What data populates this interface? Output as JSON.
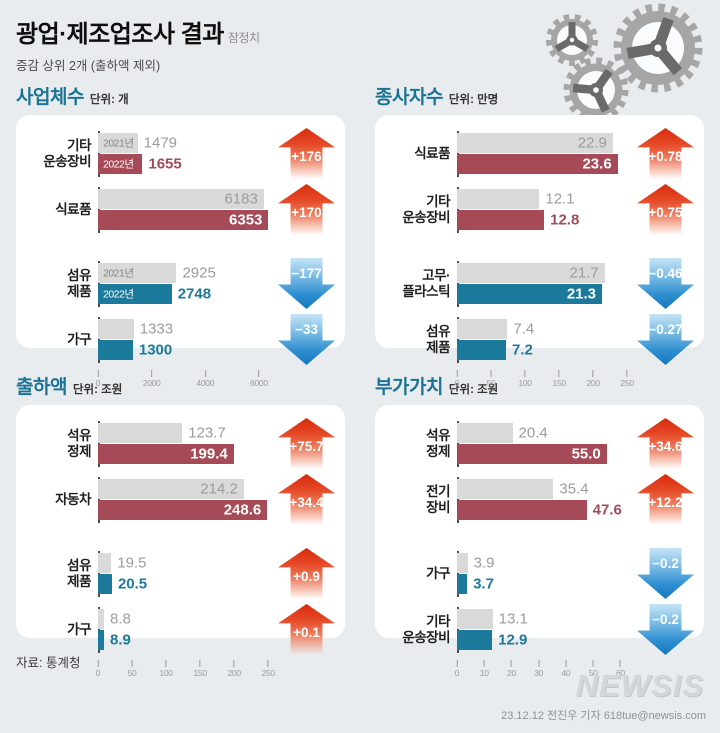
{
  "header": {
    "title": "광업·제조업조사 결과",
    "badge": "잠정치",
    "subtitle": "증감 상위 2개 (출하액 제외)"
  },
  "year_labels": {
    "y2021": "2021년",
    "y2022": "2022년"
  },
  "colors": {
    "red_bar": "#a64a57",
    "teal_bar": "#1b7a9c",
    "gray_bar": "#d9d9d9",
    "up_arrow_red": "#d92a0d",
    "down_arrow_blue": "#1478be",
    "section_title_teal": "#1b7495"
  },
  "chart_data": [
    {
      "type": "bar",
      "title": "사업체수",
      "unit_label": "단위: 개",
      "legend_years": [
        "2021년",
        "2022년"
      ],
      "axis_max": 6600,
      "display_multiplier": 1,
      "ticks": [
        "0",
        "2000",
        "4000",
        "6000"
      ],
      "groups": [
        {
          "category": [
            "기타",
            "운송장비"
          ],
          "v2021": "1479",
          "v2022": "1655",
          "change": "+176",
          "direction": "up",
          "bar_color": "red",
          "show_year_labels": true,
          "gap_before": false
        },
        {
          "category": [
            "식료품"
          ],
          "v2021": "6183",
          "v2022": "6353",
          "change": "+170",
          "direction": "up",
          "bar_color": "red",
          "show_year_labels": false,
          "gap_before": false
        },
        {
          "category": [
            "섬유",
            "제품"
          ],
          "v2021": "2925",
          "v2022": "2748",
          "change": "−177",
          "direction": "down",
          "bar_color": "teal",
          "show_year_labels": true,
          "gap_before": true
        },
        {
          "category": [
            "가구"
          ],
          "v2021": "1333",
          "v2022": "1300",
          "change": "−33",
          "direction": "down",
          "bar_color": "teal",
          "show_year_labels": false,
          "gap_before": false
        }
      ]
    },
    {
      "type": "bar",
      "title": "종사자수",
      "unit_label": "단위: 만명",
      "legend_years": [
        "2021년",
        "2022년"
      ],
      "axis_max": 260,
      "display_multiplier": 10,
      "ticks": [
        "0",
        "50",
        "100",
        "150",
        "200",
        "250"
      ],
      "groups": [
        {
          "category": [
            "식료품"
          ],
          "v2021": "22.9",
          "v2022": "23.6",
          "change": "+0.78",
          "direction": "up",
          "bar_color": "red",
          "show_year_labels": false,
          "gap_before": false
        },
        {
          "category": [
            "기타",
            "운송장비"
          ],
          "v2021": "12.1",
          "v2022": "12.8",
          "change": "+0.75",
          "direction": "up",
          "bar_color": "red",
          "show_year_labels": false,
          "gap_before": false
        },
        {
          "category": [
            "고무·",
            "플라스틱"
          ],
          "v2021": "21.7",
          "v2022": "21.3",
          "change": "−0.46",
          "direction": "down",
          "bar_color": "teal",
          "show_year_labels": false,
          "gap_before": true
        },
        {
          "category": [
            "섬유",
            "제품"
          ],
          "v2021": "7.4",
          "v2022": "7.2",
          "change": "−0.27",
          "direction": "down",
          "bar_color": "teal",
          "show_year_labels": false,
          "gap_before": false
        }
      ]
    },
    {
      "type": "bar",
      "title": "출하액",
      "unit_label": "단위: 조원",
      "legend_years": [
        "2021년",
        "2022년"
      ],
      "axis_max": 260,
      "display_multiplier": 1,
      "ticks": [
        "0",
        "50",
        "100",
        "150",
        "200",
        "250"
      ],
      "groups": [
        {
          "category": [
            "석유",
            "정제"
          ],
          "v2021": "123.7",
          "v2022": "199.4",
          "change": "+75.7",
          "direction": "up",
          "bar_color": "red",
          "show_year_labels": false,
          "gap_before": false
        },
        {
          "category": [
            "자동차"
          ],
          "v2021": "214.2",
          "v2022": "248.6",
          "change": "+34.4",
          "direction": "up",
          "bar_color": "red",
          "show_year_labels": false,
          "gap_before": false
        },
        {
          "category": [
            "섬유",
            "제품"
          ],
          "v2021": "19.5",
          "v2022": "20.5",
          "change": "+0.9",
          "direction": "up",
          "bar_color": "teal",
          "show_year_labels": false,
          "gap_before": true
        },
        {
          "category": [
            "가구"
          ],
          "v2021": "8.8",
          "v2022": "8.9",
          "change": "+0.1",
          "direction": "up",
          "bar_color": "teal",
          "show_year_labels": false,
          "gap_before": false
        }
      ]
    },
    {
      "type": "bar",
      "title": "부가가치",
      "unit_label": "단위: 조원",
      "legend_years": [
        "2021년",
        "2022년"
      ],
      "axis_max": 65,
      "display_multiplier": 1,
      "ticks": [
        "0",
        "10",
        "20",
        "30",
        "40",
        "50",
        "60"
      ],
      "groups": [
        {
          "category": [
            "석유",
            "정제"
          ],
          "v2021": "20.4",
          "v2022": "55.0",
          "change": "+34.6",
          "direction": "up",
          "bar_color": "red",
          "show_year_labels": false,
          "gap_before": false
        },
        {
          "category": [
            "전기",
            "장비"
          ],
          "v2021": "35.4",
          "v2022": "47.6",
          "change": "+12.2",
          "direction": "up",
          "bar_color": "red",
          "show_year_labels": false,
          "gap_before": false
        },
        {
          "category": [
            "가구"
          ],
          "v2021": "3.9",
          "v2022": "3.7",
          "change": "−0.2",
          "direction": "down",
          "bar_color": "teal",
          "show_year_labels": false,
          "gap_before": true
        },
        {
          "category": [
            "기타",
            "운송장비"
          ],
          "v2021": "13.1",
          "v2022": "12.9",
          "change": "−0.2",
          "direction": "down",
          "bar_color": "teal",
          "show_year_labels": false,
          "gap_before": false
        }
      ]
    }
  ],
  "footer": {
    "source": "자료: 통계청",
    "watermark": "NEWSIS",
    "credit": "23.12.12 전진우 기자 618tue@newsis.com"
  }
}
